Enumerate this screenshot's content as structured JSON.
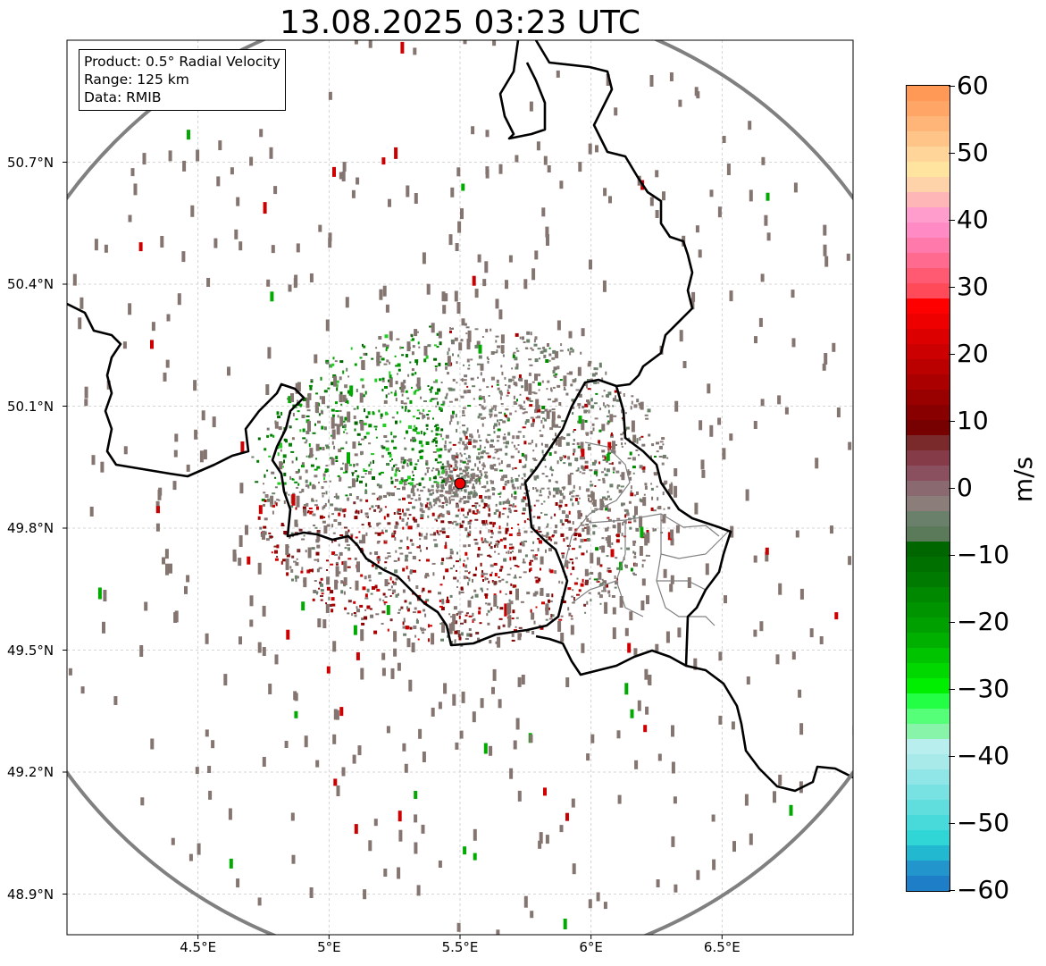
{
  "title": "13.08.2025 03:23 UTC",
  "info_box": {
    "product": "Product: 0.5° Radial Velocity",
    "range": "Range: 125 km",
    "data": "Data: RMIB"
  },
  "map": {
    "lon_range": [
      4.0,
      7.0
    ],
    "lat_range": [
      48.8,
      51.0
    ],
    "radar_site": {
      "lon": 5.5,
      "lat": 49.91
    },
    "range_ring_color": "#808080",
    "border_color": "#000000"
  },
  "axes": {
    "y_ticks": [
      {
        "label": "50.7°N",
        "lat": 50.7
      },
      {
        "label": "50.4°N",
        "lat": 50.4
      },
      {
        "label": "50.1°N",
        "lat": 50.1
      },
      {
        "label": "49.8°N",
        "lat": 49.8
      },
      {
        "label": "49.5°N",
        "lat": 49.5
      },
      {
        "label": "49.2°N",
        "lat": 49.2
      },
      {
        "label": "48.9°N",
        "lat": 48.9
      }
    ],
    "x_ticks": [
      {
        "label": "4.5°E",
        "lon": 4.5
      },
      {
        "label": "5°E",
        "lon": 5.0
      },
      {
        "label": "5.5°E",
        "lon": 5.5
      },
      {
        "label": "6°E",
        "lon": 6.0
      },
      {
        "label": "6.5°E",
        "lon": 6.5
      }
    ]
  },
  "colorbar": {
    "unit": "m/s",
    "min": -60,
    "max": 60,
    "ticks": [
      "60",
      "50",
      "40",
      "30",
      "20",
      "10",
      "0",
      "−10",
      "−20",
      "−30",
      "−40",
      "−50",
      "−60"
    ],
    "colors": [
      "#ff9955",
      "#ffa566",
      "#ffb577",
      "#ffc488",
      "#ffd599",
      "#ffe4a0",
      "#ffd3aa",
      "#ffb6b6",
      "#ff9ecc",
      "#ff8ac4",
      "#ff7aaa",
      "#ff6a8e",
      "#ff5a72",
      "#ff4a5a",
      "#ff0000",
      "#ee0000",
      "#dd0000",
      "#cc0000",
      "#bb0000",
      "#aa0000",
      "#990000",
      "#880000",
      "#770000",
      "#7a2a2a",
      "#853c48",
      "#8a5060",
      "#8a6a70",
      "#8a7d7a",
      "#6a806a",
      "#5a7a5a",
      "#006600",
      "#007000",
      "#007a00",
      "#008800",
      "#009400",
      "#00a000",
      "#00b000",
      "#00c400",
      "#00d800",
      "#00ee00",
      "#22ff44",
      "#55ff77",
      "#88f4aa",
      "#b8eeee",
      "#a8eaea",
      "#90e6e6",
      "#78e2e2",
      "#60dede",
      "#48dada",
      "#30d6d6",
      "#22b8d0",
      "#2296cc",
      "#1e7ec8"
    ]
  }
}
